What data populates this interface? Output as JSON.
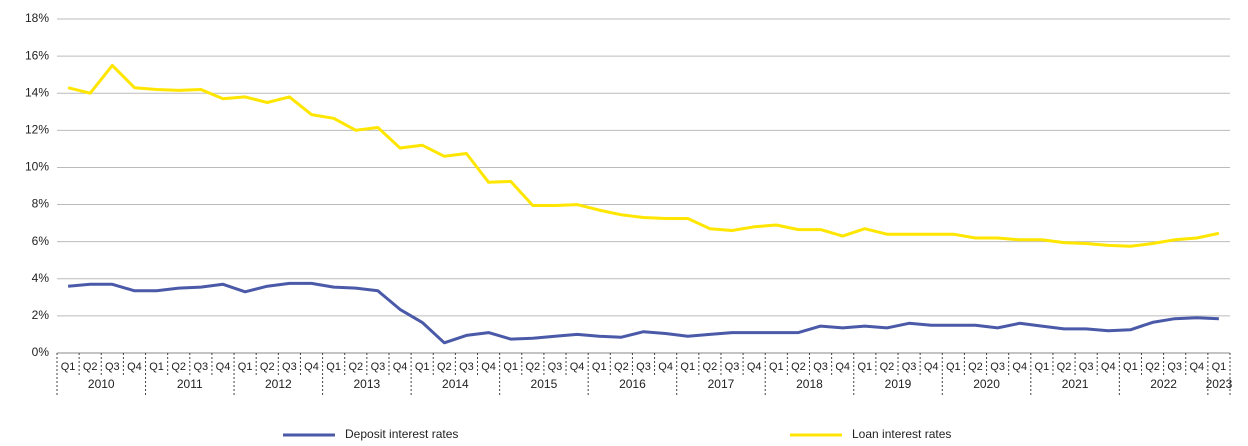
{
  "chart_data": {
    "type": "line",
    "categories": [
      "Q1",
      "Q2",
      "Q3",
      "Q4",
      "Q1",
      "Q2",
      "Q3",
      "Q4",
      "Q1",
      "Q2",
      "Q3",
      "Q4",
      "Q1",
      "Q2",
      "Q3",
      "Q4",
      "Q1",
      "Q2",
      "Q3",
      "Q4",
      "Q1",
      "Q2",
      "Q3",
      "Q4",
      "Q1",
      "Q2",
      "Q3",
      "Q4",
      "Q1",
      "Q2",
      "Q3",
      "Q4",
      "Q1",
      "Q2",
      "Q3",
      "Q4",
      "Q1",
      "Q2",
      "Q3",
      "Q4",
      "Q1",
      "Q2",
      "Q3",
      "Q4",
      "Q1",
      "Q2",
      "Q3",
      "Q4",
      "Q1",
      "Q2",
      "Q3",
      "Q4",
      "Q1"
    ],
    "years": [
      "2010",
      "2011",
      "2012",
      "2013",
      "2014",
      "2015",
      "2016",
      "2017",
      "2018",
      "2019",
      "2020",
      "2021",
      "2022",
      "2023"
    ],
    "series": [
      {
        "name": "Deposit interest rates",
        "color": "#4a5aa8",
        "values": [
          3.6,
          3.7,
          3.7,
          3.35,
          3.35,
          3.5,
          3.55,
          3.7,
          3.3,
          3.6,
          3.75,
          3.75,
          3.55,
          3.5,
          3.35,
          2.35,
          1.65,
          0.55,
          0.95,
          1.1,
          0.75,
          0.8,
          0.9,
          1.0,
          0.9,
          0.85,
          1.15,
          1.05,
          0.9,
          1.0,
          1.1,
          1.1,
          1.1,
          1.1,
          1.45,
          1.35,
          1.45,
          1.35,
          1.6,
          1.5,
          1.5,
          1.5,
          1.35,
          1.6,
          1.45,
          1.3,
          1.3,
          1.2,
          1.25,
          1.65,
          1.85,
          1.9,
          1.85
        ]
      },
      {
        "name": "Loan interest rates",
        "color": "#ffe600",
        "values": [
          14.3,
          14.0,
          15.5,
          14.3,
          14.2,
          14.15,
          14.2,
          13.7,
          13.8,
          13.5,
          13.8,
          12.85,
          12.65,
          12.0,
          12.15,
          11.05,
          11.2,
          10.6,
          10.75,
          9.2,
          9.25,
          7.95,
          7.95,
          8.0,
          7.7,
          7.45,
          7.3,
          7.25,
          7.25,
          6.7,
          6.6,
          6.8,
          6.9,
          6.65,
          6.65,
          6.3,
          6.7,
          6.4,
          6.4,
          6.4,
          6.4,
          6.2,
          6.2,
          6.1,
          6.1,
          5.95,
          5.9,
          5.8,
          5.75,
          5.9,
          6.1,
          6.2,
          6.45
        ]
      }
    ],
    "ylim": [
      0,
      18
    ],
    "yticks": [
      {
        "value": 0,
        "label": "0%"
      },
      {
        "value": 2,
        "label": "2%"
      },
      {
        "value": 4,
        "label": "4%"
      },
      {
        "value": 6,
        "label": "6%"
      },
      {
        "value": 8,
        "label": "8%"
      },
      {
        "value": 10,
        "label": "10%"
      },
      {
        "value": 12,
        "label": "12%"
      },
      {
        "value": 14,
        "label": "14%"
      },
      {
        "value": 16,
        "label": "16%"
      },
      {
        "value": 18,
        "label": "18%"
      }
    ],
    "grid": true
  }
}
